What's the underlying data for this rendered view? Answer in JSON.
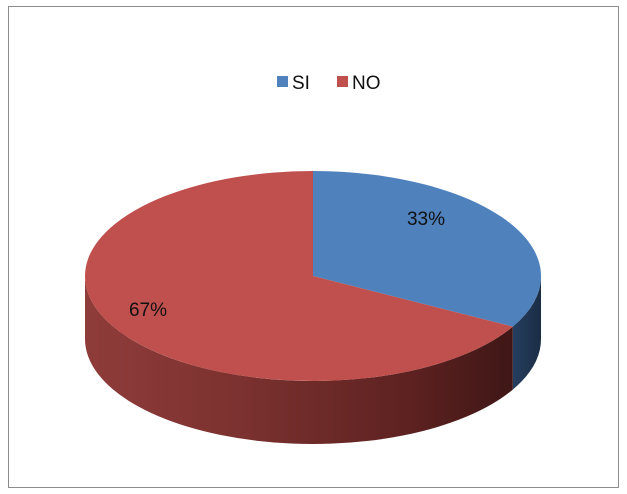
{
  "chart_data": {
    "type": "pie",
    "style": "3d",
    "categories": [
      "SI",
      "NO"
    ],
    "values": [
      33,
      67
    ],
    "data_labels": [
      "33%",
      "67%"
    ],
    "colors": [
      "#4f81bd",
      "#c0504d"
    ],
    "title": "",
    "legend_position": "top",
    "border": true
  }
}
